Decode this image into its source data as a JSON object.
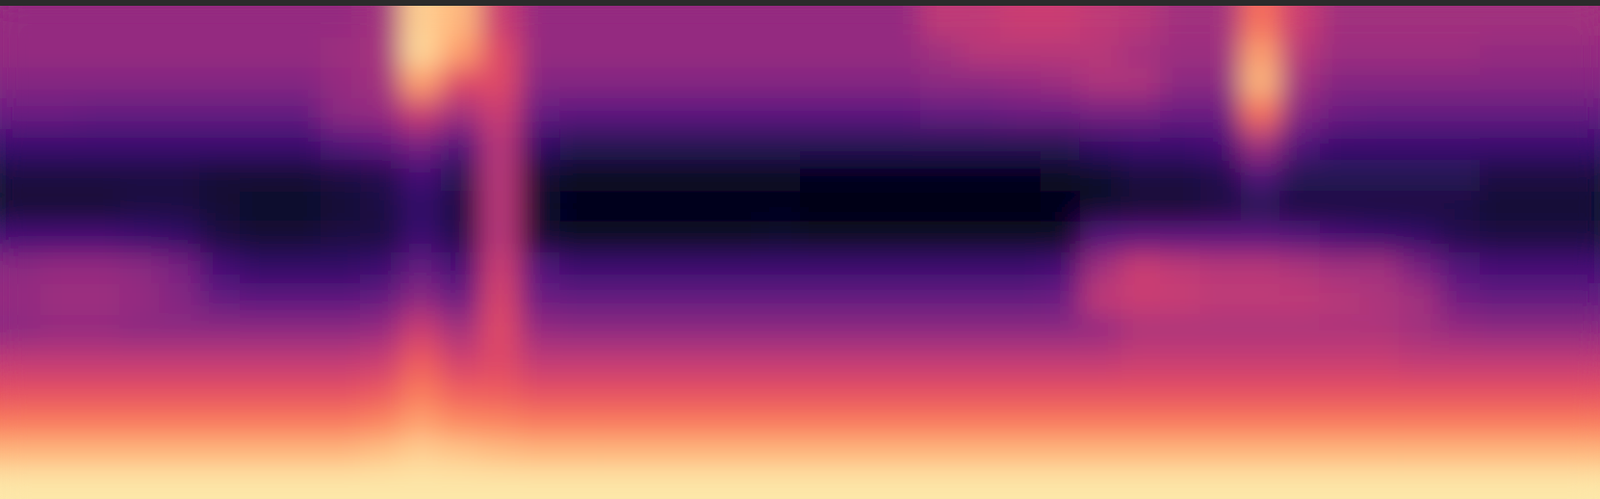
{
  "chart_data": {
    "type": "heatmap",
    "color": "magma",
    "tick_labels": false,
    "zlim": [
      0,
      100
    ],
    "values": [
      [
        42,
        42,
        42,
        42,
        42,
        42,
        42,
        42,
        42,
        45,
        90,
        85,
        55,
        42,
        42,
        42,
        42,
        42,
        42,
        42,
        42,
        42,
        42,
        52,
        52,
        55,
        55,
        52,
        50,
        45,
        45,
        70,
        55,
        45,
        45,
        45,
        45,
        45,
        45,
        45
      ],
      [
        42,
        42,
        42,
        42,
        42,
        42,
        42,
        42,
        44,
        46,
        92,
        80,
        60,
        42,
        42,
        42,
        42,
        42,
        42,
        42,
        42,
        42,
        42,
        45,
        50,
        50,
        50,
        50,
        46,
        44,
        44,
        80,
        50,
        44,
        44,
        44,
        44,
        42,
        42,
        42
      ],
      [
        38,
        38,
        38,
        38,
        38,
        38,
        38,
        38,
        42,
        45,
        80,
        60,
        60,
        38,
        38,
        38,
        38,
        38,
        38,
        38,
        38,
        38,
        38,
        40,
        40,
        42,
        44,
        48,
        48,
        40,
        40,
        85,
        45,
        38,
        38,
        38,
        38,
        38,
        38,
        38
      ],
      [
        32,
        32,
        30,
        30,
        30,
        30,
        30,
        30,
        40,
        42,
        55,
        45,
        55,
        30,
        28,
        28,
        28,
        28,
        28,
        28,
        28,
        28,
        28,
        30,
        30,
        32,
        32,
        34,
        34,
        32,
        32,
        70,
        38,
        32,
        30,
        30,
        30,
        30,
        30,
        30
      ],
      [
        20,
        20,
        20,
        20,
        20,
        20,
        20,
        20,
        25,
        28,
        35,
        25,
        50,
        18,
        15,
        15,
        15,
        15,
        15,
        15,
        15,
        15,
        15,
        15,
        15,
        15,
        15,
        18,
        20,
        20,
        22,
        45,
        25,
        20,
        20,
        20,
        20,
        20,
        20,
        20
      ],
      [
        12,
        12,
        12,
        12,
        12,
        10,
        10,
        10,
        12,
        14,
        22,
        15,
        50,
        10,
        6,
        6,
        6,
        6,
        6,
        6,
        5,
        5,
        5,
        5,
        5,
        5,
        6,
        8,
        12,
        12,
        14,
        25,
        15,
        15,
        15,
        15,
        15,
        12,
        12,
        12
      ],
      [
        10,
        10,
        10,
        12,
        12,
        10,
        8,
        8,
        10,
        12,
        18,
        12,
        50,
        8,
        5,
        5,
        5,
        5,
        5,
        5,
        4,
        4,
        4,
        4,
        4,
        4,
        5,
        8,
        10,
        10,
        12,
        15,
        12,
        12,
        12,
        12,
        12,
        10,
        10,
        10
      ],
      [
        22,
        22,
        22,
        20,
        18,
        12,
        10,
        10,
        12,
        12,
        20,
        14,
        50,
        10,
        7,
        7,
        7,
        7,
        7,
        8,
        6,
        6,
        6,
        6,
        6,
        6,
        7,
        25,
        28,
        28,
        28,
        28,
        25,
        22,
        20,
        18,
        14,
        12,
        12,
        12
      ],
      [
        40,
        42,
        42,
        40,
        35,
        22,
        18,
        18,
        18,
        20,
        30,
        22,
        55,
        25,
        20,
        20,
        20,
        20,
        20,
        20,
        20,
        20,
        20,
        20,
        20,
        20,
        22,
        45,
        55,
        52,
        50,
        50,
        48,
        45,
        45,
        35,
        25,
        22,
        22,
        22
      ],
      [
        42,
        44,
        44,
        42,
        38,
        30,
        28,
        28,
        28,
        30,
        40,
        32,
        58,
        32,
        30,
        30,
        30,
        30,
        30,
        30,
        30,
        30,
        30,
        30,
        30,
        30,
        32,
        52,
        55,
        54,
        52,
        52,
        52,
        50,
        48,
        45,
        33,
        30,
        30,
        30
      ],
      [
        40,
        42,
        42,
        40,
        40,
        40,
        40,
        40,
        40,
        42,
        55,
        45,
        60,
        42,
        40,
        40,
        40,
        40,
        40,
        40,
        40,
        40,
        40,
        40,
        40,
        40,
        40,
        42,
        48,
        48,
        48,
        48,
        48,
        48,
        48,
        45,
        42,
        40,
        40,
        40
      ],
      [
        52,
        52,
        52,
        52,
        52,
        52,
        52,
        52,
        52,
        54,
        65,
        56,
        60,
        52,
        52,
        52,
        52,
        52,
        52,
        52,
        52,
        52,
        52,
        52,
        52,
        52,
        52,
        52,
        54,
        54,
        54,
        54,
        54,
        54,
        54,
        52,
        52,
        52,
        52,
        52
      ],
      [
        62,
        62,
        62,
        62,
        62,
        62,
        62,
        62,
        62,
        64,
        72,
        66,
        65,
        62,
        62,
        62,
        62,
        62,
        62,
        62,
        62,
        62,
        62,
        62,
        62,
        62,
        62,
        62,
        62,
        62,
        62,
        62,
        62,
        62,
        62,
        62,
        62,
        62,
        62,
        62
      ],
      [
        72,
        72,
        72,
        72,
        72,
        72,
        72,
        72,
        72,
        74,
        80,
        75,
        74,
        72,
        72,
        72,
        72,
        72,
        72,
        72,
        72,
        72,
        72,
        72,
        72,
        72,
        72,
        72,
        72,
        72,
        72,
        72,
        72,
        72,
        72,
        72,
        72,
        72,
        72,
        72
      ],
      [
        85,
        85,
        85,
        85,
        85,
        85,
        85,
        85,
        85,
        87,
        90,
        88,
        86,
        85,
        85,
        85,
        85,
        85,
        85,
        85,
        85,
        85,
        85,
        85,
        85,
        85,
        85,
        85,
        85,
        85,
        85,
        85,
        85,
        85,
        85,
        85,
        85,
        85,
        85,
        85
      ],
      [
        95,
        95,
        95,
        95,
        95,
        95,
        95,
        95,
        95,
        95,
        95,
        95,
        95,
        95,
        95,
        95,
        95,
        95,
        95,
        95,
        95,
        95,
        95,
        95,
        95,
        95,
        95,
        95,
        95,
        95,
        95,
        95,
        95,
        95,
        95,
        95,
        95,
        95,
        95,
        95
      ]
    ]
  }
}
